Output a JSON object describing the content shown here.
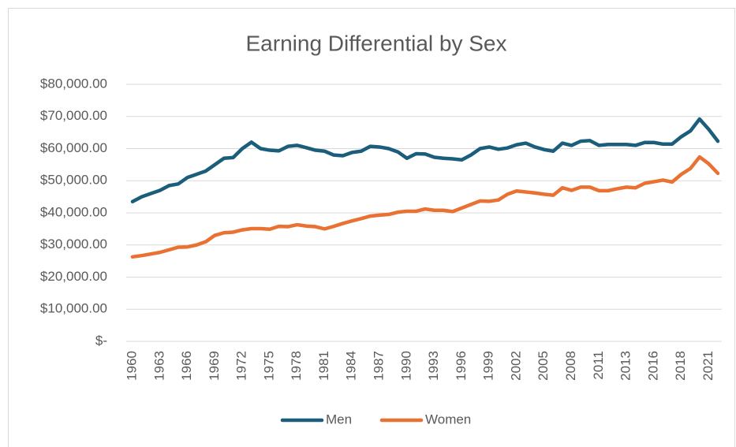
{
  "chart_data": {
    "type": "line",
    "title": "Earning Differential by Sex",
    "categories": [
      "1960",
      null,
      null,
      "1963",
      null,
      null,
      "1966",
      null,
      null,
      "1969",
      null,
      null,
      "1972",
      null,
      null,
      "1975",
      null,
      null,
      "1978",
      null,
      null,
      "1981",
      null,
      null,
      "1984",
      null,
      null,
      "1987",
      null,
      null,
      "1990",
      null,
      null,
      "1993",
      null,
      null,
      "1996",
      null,
      null,
      "1999",
      null,
      null,
      "2002",
      null,
      null,
      "2005",
      null,
      null,
      "2008",
      null,
      null,
      "2011",
      null,
      null,
      "2013",
      null,
      null,
      "2016",
      null,
      null,
      "2018",
      null,
      null,
      "2021",
      null
    ],
    "series": [
      {
        "name": "Men",
        "color": "#1b5e7b",
        "values": [
          43500,
          45000,
          46000,
          47000,
          48500,
          49000,
          51000,
          52000,
          53000,
          55000,
          57000,
          57200,
          60000,
          62000,
          60000,
          59500,
          59300,
          60700,
          61000,
          60300,
          59500,
          59200,
          58000,
          57800,
          58800,
          59200,
          60700,
          60500,
          60000,
          59000,
          57000,
          58400,
          58300,
          57300,
          57000,
          56800,
          56500,
          58000,
          60000,
          60500,
          59800,
          60200,
          61200,
          61700,
          60500,
          59700,
          59200,
          61700,
          61000,
          62300,
          62500,
          61000,
          61300,
          61300,
          61300,
          61000,
          61900,
          61900,
          61400,
          61400,
          63700,
          65500,
          69200,
          66000,
          62300
        ]
      },
      {
        "name": "Women",
        "color": "#e97132",
        "values": [
          26300,
          26700,
          27200,
          27700,
          28500,
          29300,
          29400,
          30000,
          31000,
          33000,
          33800,
          34000,
          34700,
          35100,
          35100,
          34900,
          35800,
          35700,
          36300,
          35900,
          35700,
          35000,
          35800,
          36700,
          37500,
          38200,
          39000,
          39300,
          39500,
          40200,
          40500,
          40500,
          41200,
          40800,
          40800,
          40400,
          41500,
          42600,
          43700,
          43600,
          44000,
          45800,
          46800,
          46500,
          46200,
          45800,
          45500,
          47800,
          47000,
          48000,
          48000,
          46900,
          46900,
          47500,
          48000,
          47800,
          49200,
          49700,
          50200,
          49600,
          52000,
          53800,
          57400,
          55300,
          52300
        ]
      }
    ],
    "ylim": [
      0,
      80000
    ],
    "yticks": [
      {
        "value": 0,
        "label": "$-"
      },
      {
        "value": 10000,
        "label": "$10,000.00"
      },
      {
        "value": 20000,
        "label": "$20,000.00"
      },
      {
        "value": 30000,
        "label": "$30,000.00"
      },
      {
        "value": 40000,
        "label": "$40,000.00"
      },
      {
        "value": 50000,
        "label": "$50,000.00"
      },
      {
        "value": 60000,
        "label": "$60,000.00"
      },
      {
        "value": 70000,
        "label": "$70,000.00"
      },
      {
        "value": 80000,
        "label": "$80,000.00"
      }
    ],
    "grid": true,
    "legend": "bottom"
  }
}
